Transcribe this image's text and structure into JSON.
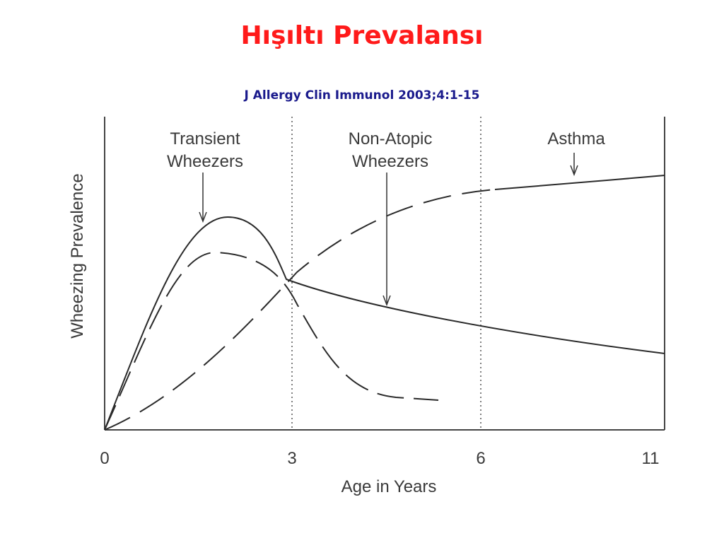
{
  "slide": {
    "title": "Hışıltı Prevalansı",
    "citation": "J Allergy Clin Immunol 2003;4:1-15"
  },
  "figure": {
    "y_label": "Wheezing Prevalence",
    "x_label": "Age in Years",
    "x_ticks": [
      "0",
      "3",
      "6",
      "11"
    ],
    "annotations": [
      [
        "Transient",
        "Wheezers"
      ],
      [
        "Non-Atopic",
        "Wheezers"
      ],
      [
        "Asthma"
      ]
    ]
  }
}
